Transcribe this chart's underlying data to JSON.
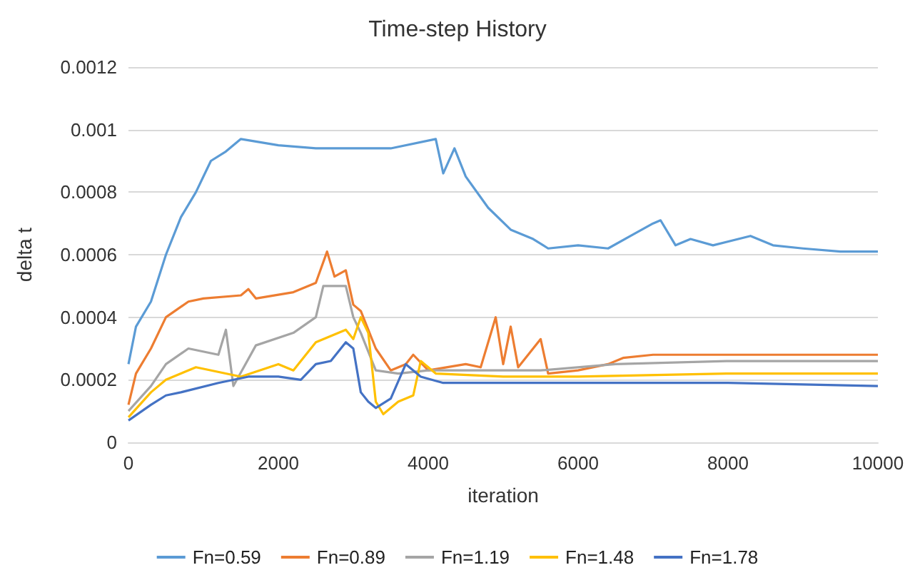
{
  "chart_data": {
    "type": "line",
    "title": "Time-step History",
    "xlabel": "iteration",
    "ylabel": "delta t",
    "xlim": [
      0,
      10000
    ],
    "xticks": [
      0,
      2000,
      4000,
      6000,
      8000,
      10000
    ],
    "ylim": [
      0,
      0.0012
    ],
    "yticks": [
      0,
      0.0002,
      0.0004,
      0.0006,
      0.0008,
      0.001,
      0.0012
    ],
    "grid": "y",
    "legend": "bottom",
    "marker": "none",
    "line_style": "solid",
    "series": [
      {
        "name": "Fn=0.59",
        "color": "#5b9bd5",
        "x": [
          0,
          100,
          300,
          500,
          700,
          900,
          1100,
          1300,
          1500,
          2000,
          2500,
          3000,
          3500,
          4100,
          4200,
          4350,
          4500,
          4800,
          5100,
          5400,
          5600,
          6000,
          6400,
          6700,
          7000,
          7100,
          7300,
          7500,
          7800,
          8300,
          8600,
          9000,
          9500,
          10000
        ],
        "values": [
          0.00025,
          0.00037,
          0.00045,
          0.0006,
          0.00072,
          0.0008,
          0.0009,
          0.00093,
          0.00097,
          0.00095,
          0.00094,
          0.00094,
          0.00094,
          0.00097,
          0.00086,
          0.00094,
          0.00085,
          0.00075,
          0.00068,
          0.00065,
          0.00062,
          0.00063,
          0.00062,
          0.00066,
          0.0007,
          0.00071,
          0.00063,
          0.00065,
          0.00063,
          0.00066,
          0.00063,
          0.00062,
          0.00061,
          0.00061
        ]
      },
      {
        "name": "Fn=0.89",
        "color": "#ed7d31",
        "x": [
          0,
          100,
          300,
          500,
          800,
          1000,
          1500,
          1600,
          1700,
          2200,
          2500,
          2650,
          2750,
          2900,
          3000,
          3100,
          3300,
          3500,
          3700,
          3800,
          4000,
          4500,
          4700,
          4900,
          5000,
          5100,
          5200,
          5500,
          5600,
          6000,
          6400,
          6600,
          7000,
          8000,
          10000
        ],
        "values": [
          0.00012,
          0.00022,
          0.0003,
          0.0004,
          0.00045,
          0.00046,
          0.00047,
          0.00049,
          0.00046,
          0.00048,
          0.00051,
          0.00061,
          0.00053,
          0.00055,
          0.00044,
          0.00042,
          0.0003,
          0.00023,
          0.00025,
          0.00028,
          0.00023,
          0.00025,
          0.00024,
          0.0004,
          0.00025,
          0.00037,
          0.00024,
          0.00033,
          0.00022,
          0.00023,
          0.00025,
          0.00027,
          0.00028,
          0.00028,
          0.00028
        ]
      },
      {
        "name": "Fn=1.19",
        "color": "#a5a5a5",
        "x": [
          0,
          300,
          500,
          800,
          1200,
          1300,
          1400,
          1700,
          2200,
          2500,
          2600,
          2900,
          3000,
          3100,
          3300,
          3600,
          4000,
          5500,
          6500,
          8000,
          10000
        ],
        "values": [
          0.0001,
          0.00018,
          0.00025,
          0.0003,
          0.00028,
          0.00036,
          0.00018,
          0.00031,
          0.00035,
          0.0004,
          0.0005,
          0.0005,
          0.0004,
          0.00035,
          0.00023,
          0.00022,
          0.00023,
          0.00023,
          0.00025,
          0.00026,
          0.00026
        ]
      },
      {
        "name": "Fn=1.48",
        "color": "#ffc000",
        "x": [
          0,
          300,
          500,
          700,
          900,
          1500,
          2000,
          2200,
          2500,
          2900,
          3000,
          3100,
          3200,
          3300,
          3400,
          3600,
          3800,
          3900,
          4100,
          5000,
          6000,
          8000,
          10000
        ],
        "values": [
          8e-05,
          0.00016,
          0.0002,
          0.00022,
          0.00024,
          0.00021,
          0.00025,
          0.00023,
          0.00032,
          0.00036,
          0.00033,
          0.0004,
          0.00035,
          0.00013,
          9e-05,
          0.00013,
          0.00015,
          0.00026,
          0.00022,
          0.00021,
          0.00021,
          0.00022,
          0.00022
        ]
      },
      {
        "name": "Fn=1.78",
        "color": "#4472c4",
        "x": [
          0,
          300,
          500,
          700,
          1200,
          1600,
          2000,
          2300,
          2500,
          2700,
          2900,
          3000,
          3100,
          3200,
          3300,
          3500,
          3700,
          3900,
          4200,
          5000,
          6000,
          8000,
          10000
        ],
        "values": [
          7e-05,
          0.00012,
          0.00015,
          0.00016,
          0.00019,
          0.00021,
          0.00021,
          0.0002,
          0.00025,
          0.00026,
          0.00032,
          0.0003,
          0.00016,
          0.00013,
          0.00011,
          0.00014,
          0.00025,
          0.00021,
          0.00019,
          0.00019,
          0.00019,
          0.00019,
          0.00018
        ]
      }
    ]
  }
}
